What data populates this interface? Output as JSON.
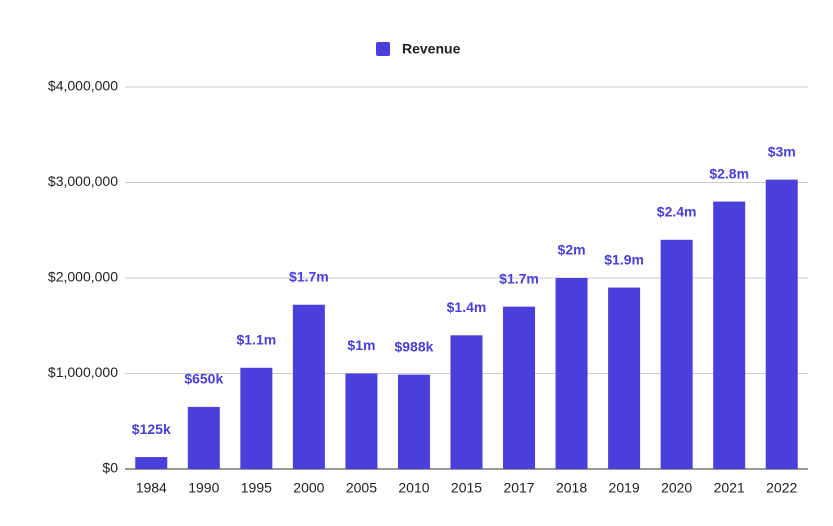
{
  "chart_data": {
    "type": "bar",
    "categories": [
      "1984",
      "1990",
      "1995",
      "2000",
      "2005",
      "2010",
      "2015",
      "2017",
      "2018",
      "2019",
      "2020",
      "2021",
      "2022"
    ],
    "series": [
      {
        "name": "Revenue",
        "color": "#4a3fdb",
        "values": [
          125000,
          650000,
          1060000,
          1720000,
          1000000,
          988000,
          1400000,
          1700000,
          2000000,
          1900000,
          2400000,
          2800000,
          3030000
        ],
        "value_labels": [
          "$125k",
          "$650k",
          "$1.1m",
          "$1.7m",
          "$1m",
          "$988k",
          "$1.4m",
          "$1.7m",
          "$2m",
          "$1.9m",
          "$2.4m",
          "$2.8m",
          "$3m"
        ]
      }
    ],
    "ylim": [
      0,
      4000000
    ],
    "yticks": [
      {
        "value": 0,
        "label": "$0"
      },
      {
        "value": 1000000,
        "label": "$1,000,000"
      },
      {
        "value": 2000000,
        "label": "$2,000,000"
      },
      {
        "value": 3000000,
        "label": "$3,000,000"
      },
      {
        "value": 4000000,
        "label": "$4,000,000"
      }
    ],
    "grid": true,
    "legend": "top"
  }
}
